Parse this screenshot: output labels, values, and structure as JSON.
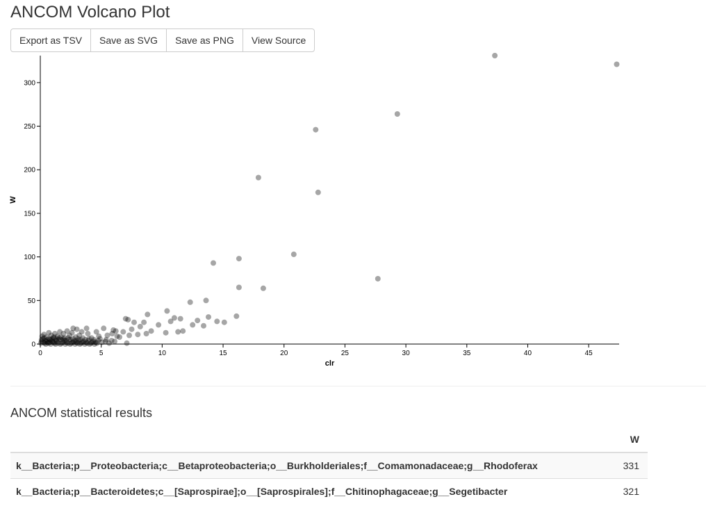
{
  "page": {
    "title": "ANCOM Volcano Plot"
  },
  "toolbar": {
    "export_tsv": "Export as TSV",
    "save_svg": "Save as SVG",
    "save_png": "Save as PNG",
    "view_source": "View Source"
  },
  "chart_data": {
    "type": "scatter",
    "title": "",
    "xlabel": "clr",
    "ylabel": "W",
    "xlim": [
      0,
      47.5
    ],
    "ylim": [
      0,
      331
    ],
    "x_ticks": [
      0,
      5,
      10,
      15,
      20,
      25,
      30,
      35,
      40,
      45
    ],
    "y_ticks": [
      0,
      50,
      100,
      150,
      200,
      250,
      300
    ],
    "grid": false,
    "point_color": "#000000",
    "point_opacity": 0.35,
    "points": [
      [
        37.3,
        331
      ],
      [
        47.3,
        321
      ],
      [
        29.3,
        264
      ],
      [
        22.6,
        246
      ],
      [
        22.8,
        174
      ],
      [
        17.9,
        191
      ],
      [
        20.8,
        103
      ],
      [
        16.3,
        98
      ],
      [
        14.2,
        93
      ],
      [
        27.7,
        75
      ],
      [
        16.3,
        65
      ],
      [
        18.3,
        64
      ],
      [
        13.6,
        50
      ],
      [
        12.3,
        48
      ],
      [
        10.4,
        38
      ],
      [
        16.1,
        32
      ],
      [
        8.8,
        34
      ],
      [
        13.8,
        31
      ],
      [
        11.0,
        30
      ],
      [
        11.5,
        29
      ],
      [
        12.9,
        27
      ],
      [
        14.5,
        26
      ],
      [
        15.1,
        25
      ],
      [
        10.7,
        26
      ],
      [
        9.7,
        22
      ],
      [
        12.5,
        22
      ],
      [
        13.4,
        21
      ],
      [
        11.3,
        14
      ],
      [
        11.7,
        15
      ],
      [
        10.3,
        13
      ],
      [
        7.0,
        29
      ],
      [
        7.2,
        28
      ],
      [
        7.7,
        25
      ],
      [
        8.5,
        25
      ],
      [
        8.2,
        20
      ],
      [
        7.5,
        17
      ],
      [
        9.1,
        15
      ],
      [
        8.7,
        12
      ],
      [
        8.0,
        11
      ],
      [
        7.3,
        10
      ],
      [
        6.8,
        14
      ],
      [
        6.5,
        8
      ],
      [
        7.1,
        1
      ],
      [
        6.0,
        16
      ],
      [
        6.2,
        15
      ],
      [
        5.9,
        12
      ],
      [
        6.3,
        9
      ],
      [
        5.5,
        10
      ],
      [
        5.2,
        18
      ],
      [
        4.8,
        9
      ],
      [
        4.6,
        14
      ],
      [
        4.2,
        7
      ],
      [
        3.9,
        12
      ],
      [
        3.8,
        18
      ],
      [
        3.4,
        14
      ],
      [
        3.2,
        10
      ],
      [
        3.0,
        17
      ],
      [
        2.9,
        8
      ],
      [
        2.6,
        13
      ],
      [
        2.7,
        18
      ],
      [
        2.4,
        10
      ],
      [
        2.2,
        15
      ],
      [
        2.0,
        7
      ],
      [
        1.9,
        12
      ],
      [
        1.7,
        5
      ],
      [
        1.6,
        14
      ],
      [
        1.4,
        9
      ],
      [
        1.3,
        4
      ],
      [
        1.2,
        12
      ],
      [
        1.1,
        7
      ],
      [
        1.0,
        3
      ],
      [
        0.9,
        10
      ],
      [
        0.8,
        5
      ],
      [
        0.7,
        13
      ],
      [
        0.6,
        2
      ],
      [
        0.5,
        8
      ],
      [
        0.4,
        4
      ],
      [
        0.3,
        11
      ],
      [
        0.2,
        6
      ],
      [
        0.1,
        3
      ],
      [
        0.15,
        9
      ],
      [
        0.35,
        1
      ],
      [
        0.55,
        5
      ],
      [
        0.75,
        2
      ],
      [
        0.95,
        6
      ],
      [
        1.15,
        1
      ],
      [
        1.35,
        3
      ],
      [
        1.55,
        7
      ],
      [
        1.75,
        1
      ],
      [
        1.95,
        4
      ],
      [
        2.15,
        2
      ],
      [
        2.35,
        5
      ],
      [
        2.55,
        1
      ],
      [
        2.75,
        3
      ],
      [
        2.95,
        2
      ],
      [
        3.15,
        4
      ],
      [
        3.35,
        1
      ],
      [
        3.55,
        3
      ],
      [
        3.75,
        2
      ],
      [
        3.95,
        4
      ],
      [
        4.15,
        1
      ],
      [
        4.35,
        3
      ],
      [
        4.55,
        2
      ],
      [
        4.75,
        4
      ],
      [
        5.05,
        2
      ],
      [
        5.35,
        3
      ],
      [
        5.65,
        1
      ],
      [
        5.85,
        4
      ],
      [
        0.05,
        1
      ],
      [
        0.25,
        2
      ],
      [
        0.45,
        0
      ],
      [
        0.65,
        1
      ],
      [
        0.85,
        0
      ],
      [
        1.05,
        2
      ],
      [
        1.25,
        0
      ],
      [
        1.45,
        1
      ],
      [
        1.65,
        0
      ],
      [
        1.85,
        2
      ],
      [
        2.05,
        0
      ],
      [
        2.25,
        1
      ],
      [
        2.45,
        0
      ],
      [
        2.65,
        2
      ],
      [
        2.85,
        0
      ],
      [
        3.05,
        1
      ],
      [
        3.25,
        0
      ],
      [
        3.45,
        2
      ],
      [
        3.65,
        0
      ],
      [
        3.85,
        1
      ],
      [
        4.05,
        0
      ],
      [
        4.25,
        2
      ],
      [
        4.45,
        0
      ],
      [
        4.65,
        1
      ],
      [
        0.1,
        5
      ],
      [
        0.3,
        7
      ],
      [
        0.5,
        3
      ],
      [
        0.7,
        6
      ],
      [
        0.9,
        4
      ],
      [
        1.1,
        8
      ],
      [
        1.3,
        6
      ],
      [
        1.5,
        5
      ],
      [
        1.7,
        8
      ],
      [
        1.9,
        6
      ],
      [
        2.1,
        4
      ],
      [
        2.3,
        7
      ],
      [
        2.5,
        5
      ],
      [
        2.7,
        6
      ],
      [
        2.9,
        4
      ],
      [
        3.1,
        6
      ],
      [
        3.3,
        5
      ],
      [
        3.5,
        7
      ],
      [
        3.7,
        5
      ],
      [
        4.0,
        6
      ],
      [
        4.4,
        5
      ],
      [
        4.9,
        6
      ],
      [
        5.4,
        5
      ],
      [
        6.1,
        3
      ]
    ]
  },
  "results": {
    "title": "ANCOM statistical results",
    "columns": [
      "",
      "W"
    ],
    "rows": [
      {
        "taxon": "k__Bacteria;p__Proteobacteria;c__Betaproteobacteria;o__Burkholderiales;f__Comamonadaceae;g__Rhodoferax",
        "w": "331"
      },
      {
        "taxon": "k__Bacteria;p__Bacteroidetes;c__[Saprospirae];o__[Saprospirales];f__Chitinophagaceae;g__Segetibacter",
        "w": "321"
      }
    ]
  }
}
